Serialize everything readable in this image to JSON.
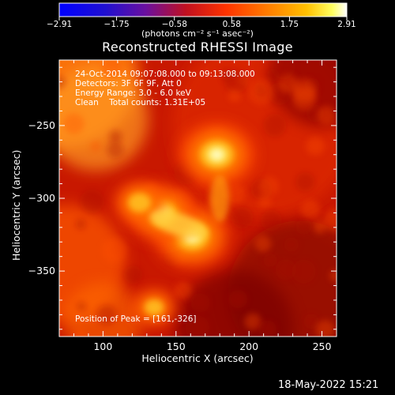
{
  "chart_data": {
    "type": "heatmap",
    "title": "Reconstructed RHESSI Image",
    "xlabel": "Heliocentric X (arcsec)",
    "ylabel": "Heliocentric Y (arcsec)",
    "xlim": [
      70,
      260
    ],
    "ylim": [
      -395,
      -205
    ],
    "x_ticks": [
      100,
      150,
      200,
      250
    ],
    "y_ticks": [
      -250,
      -300,
      -350
    ],
    "x_tick_labels": [
      "100",
      "150",
      "200",
      "250"
    ],
    "y_tick_labels": [
      "−250",
      "−300",
      "−350"
    ],
    "colorbar": {
      "ticks": [
        -2.91,
        -1.75,
        -0.58,
        0.58,
        1.75,
        2.91
      ],
      "tick_labels": [
        "−2.91",
        "−1.75",
        "−0.58",
        "0.58",
        "1.75",
        "2.91"
      ],
      "range": [
        -2.91,
        2.91
      ],
      "unit_label": "(photons cm⁻² s⁻¹ asec⁻²)",
      "colormap": "red-temperature (blue → purple → red → orange → yellow → white)"
    },
    "annotations": [
      "24-Oct-2014 09:07:08.000 to 09:13:08.000",
      "Detectors: 3F 6F 9F, Att 0",
      "Energy Range: 3.0 - 6.0 keV",
      "Clean    Total counts: 1.31E+05"
    ],
    "peak_label": "Position of Peak = [161,-326]",
    "sources": [
      {
        "x": 178,
        "y": -270,
        "intensity": 2.9
      },
      {
        "x": 161,
        "y": -326,
        "intensity": 2.91
      },
      {
        "x": 140,
        "y": -310,
        "intensity": 2.6
      },
      {
        "x": 125,
        "y": -303,
        "intensity": 1.9
      },
      {
        "x": 135,
        "y": -375,
        "intensity": 1.6
      }
    ],
    "grid": false,
    "legend": "colorbar-top"
  },
  "footer": {
    "timestamp": "18-May-2022 15:21"
  },
  "colors": {
    "background": "#000000",
    "text": "#ffffff",
    "low": "#1a0000",
    "mid": "#dd2200",
    "high": "#ffffd0"
  }
}
